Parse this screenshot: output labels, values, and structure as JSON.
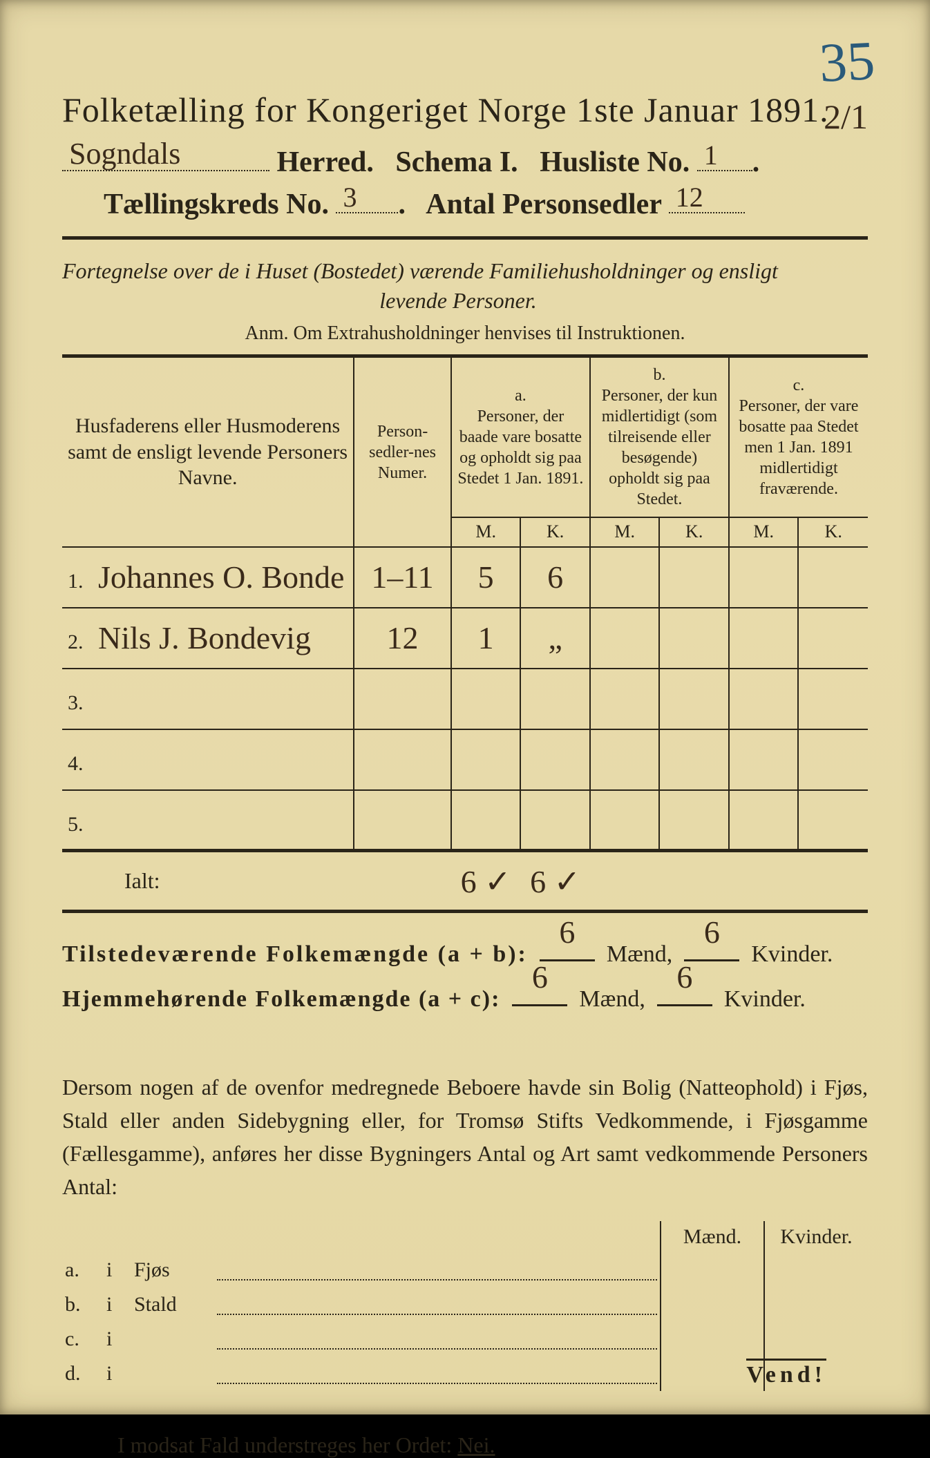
{
  "colors": {
    "paper_bg": "#e6d9a8",
    "ink": "#2a2418",
    "handwriting": "#3a2a1a",
    "pencil_blue": "#2a5a7a"
  },
  "typography": {
    "title_fontsize_pt": 38,
    "header_bold_fontsize_pt": 32,
    "body_fontsize_pt": 24,
    "handwriting_family": "Brush Script MT, cursive"
  },
  "corner_number": "35",
  "corner_fraction": "2/1",
  "title": "Folketælling for Kongeriget Norge 1ste Januar 1891.",
  "line2": {
    "herred_label": "Herred.",
    "herred_value": "Sogndals",
    "schema": "Schema I.",
    "husliste_label": "Husliste No.",
    "husliste_value": "1"
  },
  "line3": {
    "kreds_label": "Tællingskreds No.",
    "kreds_value": "3",
    "antal_label": "Antal Personsedler",
    "antal_value": "12"
  },
  "subtitle_line1": "Fortegnelse over de i Huset (Bostedet) værende Familiehusholdninger og ensligt",
  "subtitle_line2": "levende Personer.",
  "anm": "Anm.  Om Extrahusholdninger henvises til Instruktionen.",
  "table": {
    "col_name": "Husfaderens eller Husmoderens samt de ensligt levende Personers Navne.",
    "col_numer": "Person-sedler-nes Numer.",
    "col_a_label": "a.",
    "col_a": "Personer, der baade vare bosatte og opholdt sig paa Stedet 1 Jan. 1891.",
    "col_b_label": "b.",
    "col_b": "Personer, der kun midlertidigt (som tilreisende eller besøgende) opholdt sig paa Stedet.",
    "col_c_label": "c.",
    "col_c": "Personer, der vare bosatte paa Stedet men 1 Jan. 1891 midlertidigt fraværende.",
    "mk_m": "M.",
    "mk_k": "K.",
    "rows": [
      {
        "n": "1.",
        "name": "Johannes O. Bonde",
        "numer": "1–11",
        "a_m": "5",
        "a_k": "6",
        "b_m": "",
        "b_k": "",
        "c_m": "",
        "c_k": ""
      },
      {
        "n": "2.",
        "name": "Nils J. Bondevig",
        "numer": "12",
        "a_m": "1",
        "a_k": "„",
        "b_m": "",
        "b_k": "",
        "c_m": "",
        "c_k": ""
      },
      {
        "n": "3.",
        "name": "",
        "numer": "",
        "a_m": "",
        "a_k": "",
        "b_m": "",
        "b_k": "",
        "c_m": "",
        "c_k": ""
      },
      {
        "n": "4.",
        "name": "",
        "numer": "",
        "a_m": "",
        "a_k": "",
        "b_m": "",
        "b_k": "",
        "c_m": "",
        "c_k": ""
      },
      {
        "n": "5.",
        "name": "",
        "numer": "",
        "a_m": "",
        "a_k": "",
        "b_m": "",
        "b_k": "",
        "c_m": "",
        "c_k": ""
      }
    ],
    "ialt_label": "Ialt:",
    "ialt_a_m": "6 ✓",
    "ialt_a_k": "6 ✓"
  },
  "summary": {
    "tilstedev_label": "Tilstedeværende Folkemængde (a + b):",
    "hjemme_label": "Hjemmehørende Folkemængde (a + c):",
    "maend": "Mænd,",
    "kvinder": "Kvinder.",
    "t_m": "6",
    "t_k": "6",
    "h_m": "6",
    "h_k": "6"
  },
  "para": "Dersom nogen af de ovenfor medregnede Beboere havde sin Bolig (Natteophold) i Fjøs, Stald eller anden Sidebygning eller, for Tromsø Stifts Vedkommende, i Fjøsgamme (Fællesgamme), anføres her disse Bygningers Antal og Art samt vedkommende Personers Antal:",
  "bottom": {
    "head_m": "Mænd.",
    "head_k": "Kvinder.",
    "rows": [
      {
        "a": "a.",
        "i": "i",
        "label": "Fjøs"
      },
      {
        "a": "b.",
        "i": "i",
        "label": "Stald"
      },
      {
        "a": "c.",
        "i": "i",
        "label": ""
      },
      {
        "a": "d.",
        "i": "i",
        "label": ""
      }
    ]
  },
  "closing_pre": "I modsat Fald understreges her Ordet: ",
  "closing_word": "Nei.",
  "vend": "Vend!"
}
